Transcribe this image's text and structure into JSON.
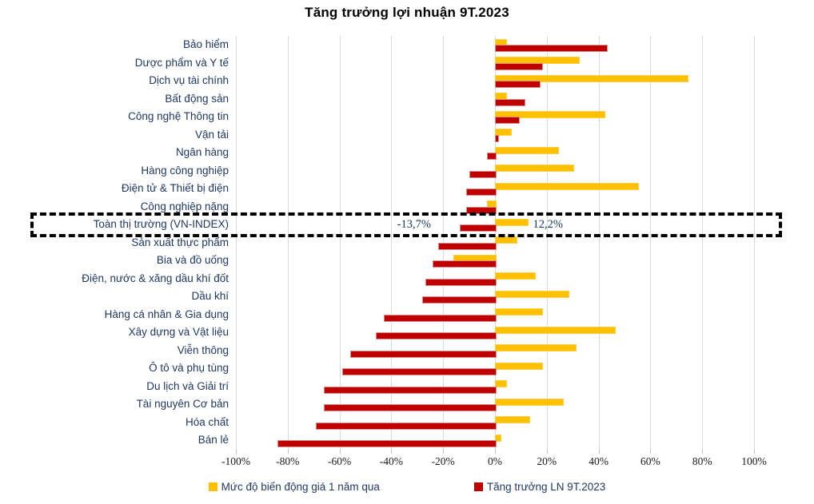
{
  "title": "Tăng trưởng lợi nhuận 9T.2023",
  "chart_data": {
    "type": "bar",
    "orientation": "horizontal",
    "title": "Tăng trưởng lợi nhuận 9T.2023",
    "categories": [
      "Bảo hiểm",
      "Dược phẩm và Y tế",
      "Dịch vụ tài chính",
      "Bất động sản",
      "Công nghệ Thông tin",
      "Vận tải",
      "Ngân hàng",
      "Hàng công nghiệp",
      "Điện tử & Thiết bị điện",
      "Công nghiệp nặng",
      "Toàn thị trường (VN-INDEX)",
      "Sản xuất thực phẩm",
      "Bia và đồ uống",
      "Điện, nước & xăng dầu khí đốt",
      "Dầu khí",
      "Hàng cá nhân & Gia dụng",
      "Xây dựng và Vật liệu",
      "Viễn thông",
      "Ô tô và phụ tùng",
      "Du lịch và Giải trí",
      "Tài nguyên Cơ bản",
      "Hóa chất",
      "Bán lẻ"
    ],
    "series": [
      {
        "name": "Mức độ biến động giá 1 năm qua",
        "color": "#FFC000",
        "values": [
          4,
          32,
          74,
          4,
          42,
          6,
          24,
          30,
          55,
          -3,
          12.2,
          8,
          -16,
          15,
          28,
          18,
          46,
          31,
          18,
          4,
          26,
          13,
          2
        ]
      },
      {
        "name": "Tăng trưởng LN 9T.2023",
        "color": "#C00000",
        "values": [
          43,
          18,
          17,
          11,
          9,
          1,
          -3,
          -10,
          -11,
          -11,
          -13.7,
          -22,
          -24,
          -27,
          -28,
          -43,
          -46,
          -56,
          -59,
          -66,
          -66,
          -69,
          -84
        ]
      }
    ],
    "xlim": [
      -100,
      100
    ],
    "x_tick_labels": [
      "-100%",
      "-80%",
      "-60%",
      "-40%",
      "-20%",
      "0%",
      "20%",
      "40%",
      "60%",
      "80%",
      "100%"
    ],
    "grid": true,
    "legend_position": "bottom",
    "highlight": {
      "category": "Toàn thị trường (VN-INDEX)",
      "index": 10,
      "red_label": "-13,7%",
      "yellow_label": "12,2%"
    }
  }
}
